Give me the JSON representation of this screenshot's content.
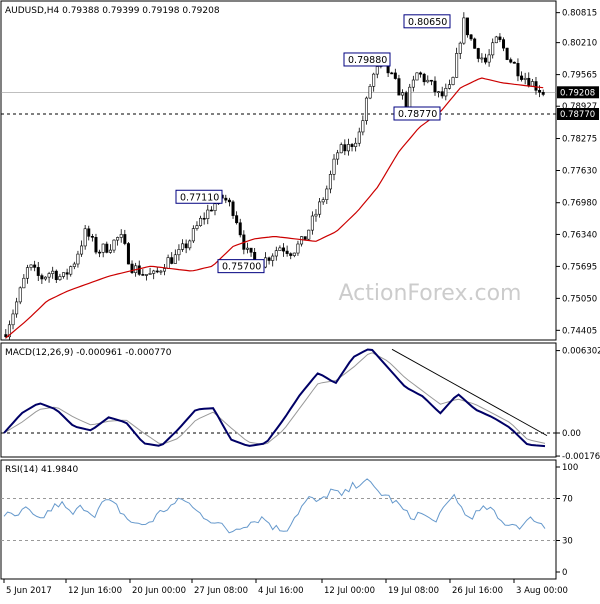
{
  "colors": {
    "background": "#ffffff",
    "candle": "#000000",
    "ma": "#cc0000",
    "macd": "#000066",
    "signal": "#999999",
    "rsi": "#6699cc",
    "frame": "#000000",
    "label_box": "#000080",
    "watermark": "#cccccc",
    "last_price_bg": "#000000",
    "last_price_fg": "#ffffff"
  },
  "watermark": "ActionForex.com",
  "chart_data": [
    {
      "type": "candlestick",
      "title": "AUDUSD,H4  0.79388 0.79399 0.79198 0.79208",
      "ylim": [
        0.7421,
        0.8105
      ],
      "y_ticks": [
        "0.80815",
        "0.80210",
        "0.79565",
        "0.78927",
        "0.78275",
        "0.77630",
        "0.76980",
        "0.76340",
        "0.75695",
        "0.75050",
        "0.74405"
      ],
      "last_price": "0.79208",
      "dashed_level": "0.78770",
      "x_ticks": [
        "5 Jun 2017",
        "12 Jun 16:00",
        "20 Jun 00:00",
        "27 Jun 08:00",
        "4 Jul 16:00",
        "12 Jul 00:00",
        "19 Jul 08:00",
        "26 Jul 16:00",
        "3 Aug 00:00"
      ],
      "annotations": [
        "0.80650",
        "0.79880",
        "0.78770",
        "0.77110",
        "0.75700"
      ],
      "closes_key": [
        0.744,
        0.75,
        0.757,
        0.7545,
        0.756,
        0.7545,
        0.758,
        0.764,
        0.76,
        0.761,
        0.763,
        0.757,
        0.7555,
        0.755,
        0.758,
        0.759,
        0.762,
        0.766,
        0.769,
        0.771,
        0.768,
        0.76,
        0.757,
        0.759,
        0.761,
        0.76,
        0.762,
        0.767,
        0.772,
        0.78,
        0.781,
        0.784,
        0.795,
        0.798,
        0.794,
        0.79,
        0.796,
        0.794,
        0.791,
        0.793,
        0.8065,
        0.801,
        0.798,
        0.803,
        0.799,
        0.796,
        0.794,
        0.7921
      ],
      "ma_key": [
        0.7425,
        0.746,
        0.75,
        0.752,
        0.7535,
        0.755,
        0.756,
        0.757,
        0.7565,
        0.756,
        0.757,
        0.761,
        0.7625,
        0.763,
        0.7625,
        0.762,
        0.764,
        0.768,
        0.773,
        0.78,
        0.785,
        0.788,
        0.793,
        0.795,
        0.794,
        0.7935,
        0.793
      ]
    },
    {
      "type": "line",
      "title": "MACD(12,26,9) -0.000961 -0.000770",
      "ylim": [
        -0.00176,
        0.0065
      ],
      "y_ticks": [
        "0.006302",
        "0.00",
        "-0.001764"
      ],
      "macd_key": [
        0.0,
        0.0015,
        0.0023,
        0.0018,
        0.0005,
        0.0002,
        0.0012,
        0.0008,
        -0.0008,
        -0.001,
        0.0003,
        0.0018,
        0.0019,
        -0.0005,
        -0.001,
        -0.0008,
        0.001,
        0.003,
        0.0046,
        0.0038,
        0.0058,
        0.0065,
        0.005,
        0.0035,
        0.0028,
        0.0015,
        0.003,
        0.0018,
        0.0012,
        0.0004,
        -0.0009,
        -0.001
      ],
      "signal_key": [
        0.0,
        0.0008,
        0.0018,
        0.002,
        0.0012,
        0.0006,
        0.0009,
        0.001,
        0.0,
        -0.0009,
        -0.0004,
        0.001,
        0.0016,
        0.0004,
        -0.0007,
        -0.0009,
        0.0002,
        0.002,
        0.0038,
        0.004,
        0.005,
        0.0062,
        0.0055,
        0.0042,
        0.0032,
        0.0022,
        0.0026,
        0.0022,
        0.0015,
        0.0008,
        -0.0005,
        -0.0008
      ],
      "trendline": [
        0.0064,
        -0.0002
      ]
    },
    {
      "type": "line",
      "title": "RSI(14) 41.9840",
      "ylim": [
        0,
        100
      ],
      "y_ticks": [
        "100",
        "70",
        "30",
        "0"
      ],
      "rsi_key": [
        55,
        52,
        60,
        48,
        58,
        66,
        54,
        63,
        55,
        68,
        62,
        50,
        44,
        48,
        58,
        64,
        70,
        58,
        52,
        46,
        38,
        44,
        48,
        52,
        42,
        40,
        56,
        70,
        66,
        78,
        72,
        82,
        88,
        78,
        72,
        64,
        52,
        56,
        48,
        58,
        74,
        52,
        56,
        62,
        48,
        46,
        44,
        52,
        42
      ]
    }
  ]
}
